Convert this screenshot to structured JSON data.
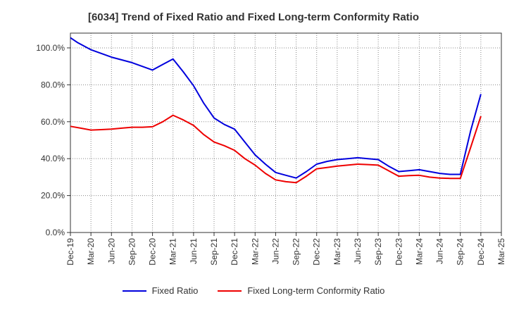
{
  "chart_data": {
    "type": "line",
    "title": "[6034]  Trend of Fixed Ratio and Fixed Long-term Conformity Ratio",
    "categories": [
      "Dec-19",
      "Mar-20",
      "Jun-20",
      "Sep-20",
      "Dec-20",
      "Mar-21",
      "Jun-21",
      "Sep-21",
      "Dec-21",
      "Mar-22",
      "Jun-22",
      "Sep-22",
      "Dec-22",
      "Mar-23",
      "Jun-23",
      "Sep-23",
      "Dec-23",
      "Mar-24",
      "Jun-24",
      "Sep-24",
      "Dec-24",
      "Mar-25"
    ],
    "y_ticks": [
      "0.0%",
      "20.0%",
      "40.0%",
      "60.0%",
      "80.0%",
      "100.0%"
    ],
    "ylim": [
      0,
      108
    ],
    "grid": true,
    "legend_position": "bottom",
    "series": [
      {
        "name": "Fixed Ratio",
        "color": "#0000dd",
        "x": [
          0,
          0.33,
          1,
          1.5,
          2,
          2.5,
          3,
          3.5,
          4,
          4.5,
          5,
          5.5,
          6,
          6.5,
          7,
          7.5,
          8,
          8.5,
          9,
          9.5,
          10,
          10.5,
          11,
          11.5,
          12,
          12.5,
          13,
          13.5,
          14,
          14.5,
          15,
          15.5,
          16,
          16.5,
          17,
          17.5,
          18,
          18.5,
          19,
          19.5,
          20
        ],
        "values": [
          105.5,
          103,
          99,
          97,
          95,
          93.5,
          92,
          90,
          88,
          91,
          94,
          87,
          79.5,
          70,
          62,
          58.5,
          56,
          49,
          42,
          37,
          32.5,
          31,
          29.5,
          33,
          37,
          38.5,
          39.5,
          40,
          40.5,
          40,
          39.5,
          36,
          33,
          33.5,
          34,
          33,
          32,
          31.5,
          31.5,
          55,
          75
        ]
      },
      {
        "name": "Fixed Long-term Conformity Ratio",
        "color": "#ee0000",
        "x": [
          0,
          0.5,
          1,
          1.5,
          2,
          2.5,
          3,
          3.5,
          4,
          4.5,
          5,
          5.5,
          6,
          6.5,
          7,
          7.5,
          8,
          8.5,
          9,
          9.5,
          10,
          10.5,
          11,
          11.5,
          12,
          12.5,
          13,
          13.5,
          14,
          14.5,
          15,
          15.5,
          16,
          16.5,
          17,
          17.5,
          18,
          18.5,
          19,
          19.5,
          20
        ],
        "values": [
          57.5,
          56.5,
          55.5,
          55.7,
          56,
          56.5,
          57,
          57,
          57.3,
          60,
          63.5,
          61,
          58,
          53,
          49,
          47,
          44.5,
          40,
          36.5,
          32,
          28.5,
          27.5,
          27,
          30.5,
          34.5,
          35.2,
          36,
          36.5,
          37,
          36.8,
          36.5,
          33.5,
          30.5,
          30.8,
          31,
          30,
          29.5,
          29.3,
          29.3,
          46,
          63
        ]
      }
    ]
  }
}
